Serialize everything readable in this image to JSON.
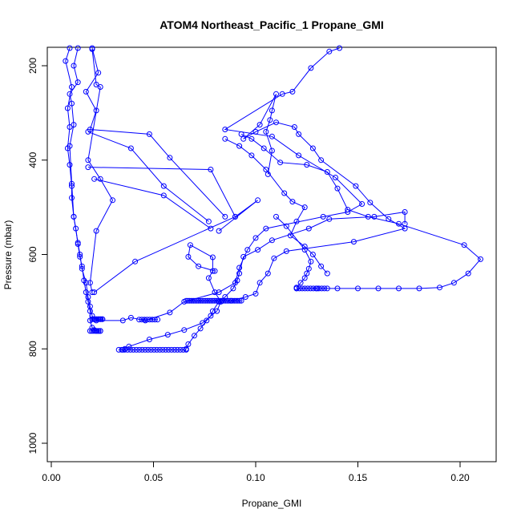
{
  "chart_data": {
    "type": "line",
    "title": "ATOM4 Northeast_Pacific_1 Propane_GMI",
    "xlabel": "Propane_GMI",
    "ylabel": "Pressure (mbar)",
    "xlim": [
      0.0,
      0.22
    ],
    "ylim": [
      1040,
      160
    ],
    "y_reversed": true,
    "grid": false,
    "x_ticks": [
      0.0,
      0.05,
      0.1,
      0.15,
      0.2
    ],
    "x_tick_labels": [
      "0.00",
      "0.05",
      "0.10",
      "0.15",
      "0.20"
    ],
    "y_ticks": [
      200,
      400,
      600,
      800,
      1000
    ],
    "y_tick_labels": [
      "200",
      "400",
      "600",
      "800",
      "1000"
    ],
    "colors": {
      "series": "#0000ff"
    },
    "series": [
      {
        "points": [
          [
            0.009,
            160
          ],
          [
            0.007,
            190
          ],
          [
            0.01,
            245
          ],
          [
            0.008,
            290
          ],
          [
            0.009,
            330
          ],
          [
            0.008,
            375
          ],
          [
            0.009,
            410
          ],
          [
            0.01,
            455
          ],
          [
            0.01,
            480
          ],
          [
            0.011,
            520
          ],
          [
            0.012,
            545
          ],
          [
            0.013,
            578
          ],
          [
            0.014,
            605
          ],
          [
            0.015,
            625
          ],
          [
            0.016,
            655
          ],
          [
            0.017,
            680
          ],
          [
            0.018,
            700
          ],
          [
            0.019,
            720
          ],
          [
            0.019,
            740
          ],
          [
            0.02,
            755
          ],
          [
            0.021,
            760
          ],
          [
            0.022,
            762
          ],
          [
            0.023,
            762
          ],
          [
            0.024,
            762
          ]
        ]
      },
      {
        "points": [
          [
            0.013,
            160
          ],
          [
            0.011,
            200
          ],
          [
            0.013,
            235
          ],
          [
            0.009,
            260
          ],
          [
            0.01,
            280
          ],
          [
            0.011,
            325
          ],
          [
            0.009,
            370
          ],
          [
            0.01,
            450
          ],
          [
            0.011,
            520
          ],
          [
            0.013,
            575
          ],
          [
            0.014,
            600
          ],
          [
            0.015,
            630
          ],
          [
            0.017,
            660
          ],
          [
            0.018,
            690
          ],
          [
            0.019,
            710
          ],
          [
            0.02,
            730
          ],
          [
            0.021,
            737
          ],
          [
            0.022,
            737
          ],
          [
            0.023,
            737
          ],
          [
            0.024,
            737
          ],
          [
            0.025,
            737
          ]
        ]
      },
      {
        "points": [
          [
            0.02,
            160
          ],
          [
            0.023,
            215
          ],
          [
            0.017,
            255
          ],
          [
            0.022,
            295
          ],
          [
            0.019,
            335
          ],
          [
            0.048,
            345
          ],
          [
            0.058,
            395
          ],
          [
            0.085,
            520
          ]
        ]
      },
      {
        "points": [
          [
            0.018,
            340
          ],
          [
            0.039,
            375
          ],
          [
            0.055,
            455
          ],
          [
            0.077,
            530
          ]
        ]
      },
      {
        "points": [
          [
            0.018,
            415
          ],
          [
            0.078,
            420
          ],
          [
            0.09,
            520
          ]
        ]
      },
      {
        "points": [
          [
            0.021,
            440
          ],
          [
            0.055,
            475
          ],
          [
            0.078,
            545
          ]
        ]
      },
      {
        "points": [
          [
            0.02,
            165
          ],
          [
            0.022,
            240
          ],
          [
            0.024,
            245
          ],
          [
            0.018,
            400
          ],
          [
            0.024,
            440
          ],
          [
            0.03,
            485
          ],
          [
            0.022,
            550
          ],
          [
            0.019,
            660
          ],
          [
            0.02,
            680
          ]
        ]
      },
      {
        "points": [
          [
            0.021,
            680
          ],
          [
            0.041,
            615
          ],
          [
            0.09,
            520
          ],
          [
            0.101,
            485
          ],
          [
            0.082,
            550
          ]
        ]
      },
      {
        "points": [
          [
            0.022,
            740
          ],
          [
            0.035,
            740
          ],
          [
            0.039,
            734
          ],
          [
            0.046,
            740
          ],
          [
            0.058,
            723
          ],
          [
            0.065,
            700
          ],
          [
            0.082,
            680
          ],
          [
            0.09,
            660
          ],
          [
            0.092,
            628
          ],
          [
            0.096,
            590
          ],
          [
            0.1,
            565
          ],
          [
            0.105,
            545
          ],
          [
            0.133,
            520
          ],
          [
            0.145,
            510
          ],
          [
            0.152,
            493
          ],
          [
            0.139,
            437
          ],
          [
            0.121,
            390
          ],
          [
            0.108,
            350
          ],
          [
            0.085,
            335
          ],
          [
            0.113,
            260
          ],
          [
            0.118,
            255
          ],
          [
            0.127,
            205
          ],
          [
            0.136,
            170
          ],
          [
            0.141,
            160
          ]
        ]
      },
      {
        "points": [
          [
            0.035,
            802
          ],
          [
            0.036,
            800
          ],
          [
            0.038,
            795
          ],
          [
            0.048,
            780
          ],
          [
            0.057,
            770
          ],
          [
            0.065,
            760
          ],
          [
            0.074,
            745
          ],
          [
            0.081,
            720
          ],
          [
            0.083,
            700
          ],
          [
            0.08,
            680
          ],
          [
            0.077,
            650
          ],
          [
            0.079,
            635
          ],
          [
            0.079,
            606
          ],
          [
            0.068,
            580
          ],
          [
            0.067,
            605
          ],
          [
            0.072,
            625
          ],
          [
            0.08,
            635
          ]
        ]
      },
      {
        "points": [
          [
            0.066,
            800
          ],
          [
            0.067,
            790
          ],
          [
            0.07,
            772
          ],
          [
            0.073,
            757
          ],
          [
            0.076,
            740
          ],
          [
            0.078,
            730
          ],
          [
            0.079,
            720
          ],
          [
            0.082,
            700
          ],
          [
            0.085,
            690
          ],
          [
            0.089,
            672
          ],
          [
            0.091,
            655
          ],
          [
            0.092,
            640
          ],
          [
            0.094,
            605
          ],
          [
            0.101,
            590
          ],
          [
            0.108,
            570
          ],
          [
            0.126,
            545
          ],
          [
            0.136,
            525
          ],
          [
            0.158,
            520
          ],
          [
            0.173,
            510
          ],
          [
            0.173,
            535
          ]
        ]
      },
      {
        "points": [
          [
            0.088,
            698
          ],
          [
            0.095,
            690
          ],
          [
            0.1,
            683
          ],
          [
            0.102,
            660
          ],
          [
            0.106,
            640
          ],
          [
            0.109,
            608
          ],
          [
            0.115,
            593
          ],
          [
            0.148,
            573
          ],
          [
            0.173,
            545
          ],
          [
            0.165,
            525
          ],
          [
            0.156,
            490
          ],
          [
            0.149,
            455
          ],
          [
            0.132,
            400
          ],
          [
            0.128,
            375
          ],
          [
            0.121,
            345
          ],
          [
            0.119,
            330
          ],
          [
            0.11,
            320
          ],
          [
            0.1,
            340
          ],
          [
            0.094,
            355
          ],
          [
            0.102,
            325
          ],
          [
            0.11,
            260
          ],
          [
            0.108,
            295
          ],
          [
            0.107,
            315
          ],
          [
            0.105,
            340
          ],
          [
            0.108,
            380
          ],
          [
            0.106,
            430
          ]
        ]
      },
      {
        "points": [
          [
            0.12,
            670
          ],
          [
            0.122,
            660
          ],
          [
            0.124,
            650
          ],
          [
            0.125,
            640
          ],
          [
            0.126,
            630
          ],
          [
            0.127,
            615
          ],
          [
            0.124,
            590
          ],
          [
            0.115,
            540
          ],
          [
            0.11,
            520
          ]
        ]
      },
      {
        "points": [
          [
            0.12,
            672
          ],
          [
            0.13,
            672
          ],
          [
            0.14,
            672
          ],
          [
            0.15,
            672
          ],
          [
            0.16,
            672
          ],
          [
            0.17,
            672
          ],
          [
            0.18,
            672
          ],
          [
            0.19,
            670
          ],
          [
            0.197,
            660
          ],
          [
            0.204,
            640
          ],
          [
            0.21,
            610
          ],
          [
            0.202,
            580
          ],
          [
            0.17,
            535
          ],
          [
            0.155,
            520
          ],
          [
            0.145,
            505
          ],
          [
            0.14,
            460
          ],
          [
            0.135,
            425
          ],
          [
            0.125,
            410
          ],
          [
            0.112,
            405
          ],
          [
            0.104,
            375
          ],
          [
            0.098,
            355
          ],
          [
            0.093,
            345
          ]
        ]
      },
      {
        "points": [
          [
            0.135,
            640
          ],
          [
            0.132,
            625
          ],
          [
            0.128,
            600
          ],
          [
            0.124,
            583
          ],
          [
            0.117,
            560
          ],
          [
            0.12,
            530
          ],
          [
            0.124,
            500
          ],
          [
            0.118,
            488
          ],
          [
            0.114,
            470
          ],
          [
            0.105,
            420
          ],
          [
            0.098,
            390
          ],
          [
            0.092,
            370
          ],
          [
            0.085,
            355
          ]
        ]
      }
    ],
    "dense_clusters": [
      {
        "x_from": 0.033,
        "x_to": 0.066,
        "y": 802,
        "count": 24
      },
      {
        "x_from": 0.066,
        "x_to": 0.093,
        "y": 698,
        "count": 32
      },
      {
        "x_from": 0.043,
        "x_to": 0.052,
        "y": 738,
        "count": 8
      },
      {
        "x_from": 0.02,
        "x_to": 0.025,
        "y": 737,
        "count": 8
      },
      {
        "x_from": 0.019,
        "x_to": 0.024,
        "y": 762,
        "count": 7
      },
      {
        "x_from": 0.12,
        "x_to": 0.135,
        "y": 672,
        "count": 12
      }
    ]
  }
}
